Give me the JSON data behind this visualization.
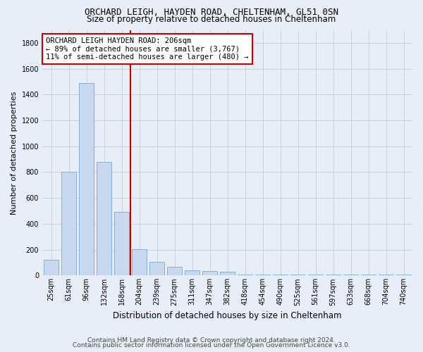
{
  "title": "ORCHARD LEIGH, HAYDEN ROAD, CHELTENHAM, GL51 0SN",
  "subtitle": "Size of property relative to detached houses in Cheltenham",
  "xlabel": "Distribution of detached houses by size in Cheltenham",
  "ylabel": "Number of detached properties",
  "footer1": "Contains HM Land Registry data © Crown copyright and database right 2024.",
  "footer2": "Contains public sector information licensed under the Open Government Licence v3.0.",
  "categories": [
    "25sqm",
    "61sqm",
    "96sqm",
    "132sqm",
    "168sqm",
    "204sqm",
    "239sqm",
    "275sqm",
    "311sqm",
    "347sqm",
    "382sqm",
    "418sqm",
    "454sqm",
    "490sqm",
    "525sqm",
    "561sqm",
    "597sqm",
    "633sqm",
    "668sqm",
    "704sqm",
    "740sqm"
  ],
  "values": [
    120,
    800,
    1490,
    880,
    490,
    205,
    105,
    65,
    42,
    35,
    28,
    10,
    5,
    5,
    5,
    5,
    5,
    5,
    5,
    5,
    5
  ],
  "highlight_index": 5,
  "bar_color": "#c8d8ee",
  "bar_edgecolor": "#7aa8cc",
  "highlight_line_color": "#cc0000",
  "ylim": [
    0,
    1900
  ],
  "yticks": [
    0,
    200,
    400,
    600,
    800,
    1000,
    1200,
    1400,
    1600,
    1800
  ],
  "annotation_title": "ORCHARD LEIGH HAYDEN ROAD: 206sqm",
  "annotation_line1": "← 89% of detached houses are smaller (3,767)",
  "annotation_line2": "11% of semi-detached houses are larger (480) →",
  "grid_color": "#cccccc",
  "bg_color": "#e8eef8",
  "title_fontsize": 9,
  "subtitle_fontsize": 8.5,
  "ylabel_fontsize": 8,
  "xlabel_fontsize": 8.5,
  "tick_fontsize": 7,
  "annotation_fontsize": 7.5,
  "footer_fontsize": 6.5
}
